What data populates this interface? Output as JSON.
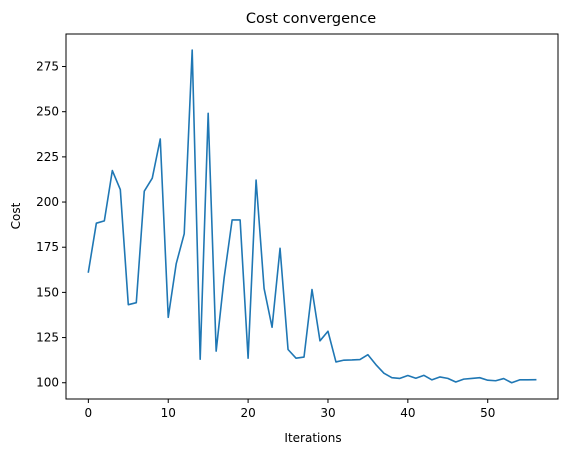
{
  "chart_data": {
    "type": "line",
    "title": "Cost convergence",
    "xlabel": "Iterations",
    "ylabel": "Cost",
    "xlim": [
      -2.8,
      58.8
    ],
    "ylim": [
      91,
      293
    ],
    "xticks": [
      0,
      10,
      20,
      30,
      40,
      50
    ],
    "yticks": [
      100,
      125,
      150,
      175,
      200,
      225,
      250,
      275
    ],
    "grid": false,
    "line_color": "#1f77b4",
    "series": [
      {
        "x": [
          0,
          1,
          2,
          3,
          4,
          5,
          6,
          7,
          8,
          9,
          10,
          11,
          12,
          13,
          14,
          15,
          16,
          17,
          18,
          19,
          20,
          21,
          22,
          23,
          24,
          25,
          26,
          27,
          28,
          29,
          30,
          31,
          32,
          33,
          34,
          35,
          36,
          37,
          38,
          39,
          40,
          41,
          42,
          43,
          44,
          45,
          46,
          47,
          48,
          49,
          50,
          51,
          52,
          53,
          54,
          55,
          56
        ],
        "values": [
          161.3,
          188.3,
          189.6,
          217.4,
          206.9,
          143.2,
          144.3,
          206.0,
          213.2,
          234.9,
          136.2,
          165.9,
          182.4,
          284.1,
          113.0,
          249.1,
          117.5,
          158.1,
          190.1,
          190.1,
          113.6,
          212.2,
          152.2,
          130.7,
          174.4,
          118.4,
          113.6,
          114.2,
          151.6,
          123.2,
          128.5,
          111.5,
          112.5,
          112.6,
          112.8,
          115.5,
          110.0,
          105.3,
          102.8,
          102.4,
          104.0,
          102.5,
          104.1,
          101.6,
          103.2,
          102.4,
          100.4,
          102.0,
          102.4,
          102.8,
          101.4,
          101.1,
          102.3,
          100.0,
          101.6,
          101.6,
          101.7
        ]
      }
    ]
  }
}
